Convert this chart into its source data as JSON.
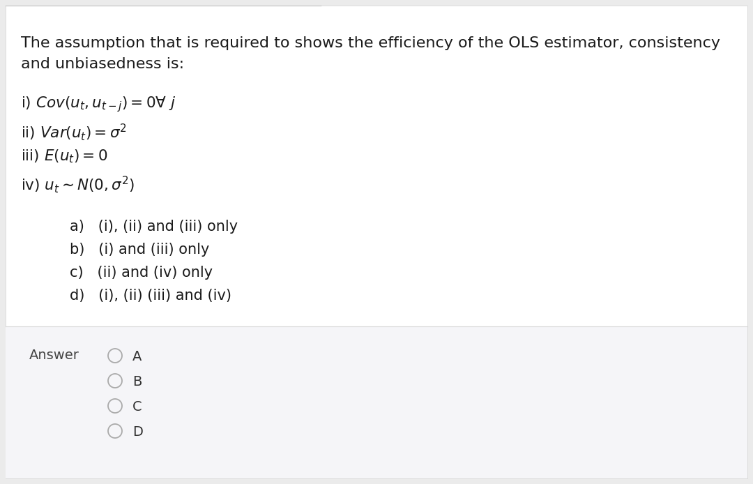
{
  "page_bg": "#ebebeb",
  "content_bg": "#ffffff",
  "answer_section_bg": "#f5f5f8",
  "title_line1": "The assumption that is required to shows the efficiency of the OLS estimator, consistency",
  "title_line2": "and unbiasedness is:",
  "option_a": "a)   (i), (ii) and (iii) only",
  "option_b": "b)   (i) and (iii) only",
  "option_c": "c)   (ii) and (iv) only",
  "option_d": "d)   (i), (ii) (iii) and (iv)",
  "answer_label": "Answer",
  "radio_options": [
    "A",
    "B",
    "C",
    "D"
  ],
  "font_size_title": 16,
  "font_size_body": 15.5,
  "font_size_options": 15,
  "font_size_answer": 14,
  "text_color": "#1a1a1a",
  "answer_label_color": "#444444",
  "radio_color": "#aaaaaa",
  "radio_label_color": "#333333",
  "separator_color": "#d0d0d0",
  "top_line_color": "#cccccc",
  "answer_divider_color": "#d8d8d8"
}
